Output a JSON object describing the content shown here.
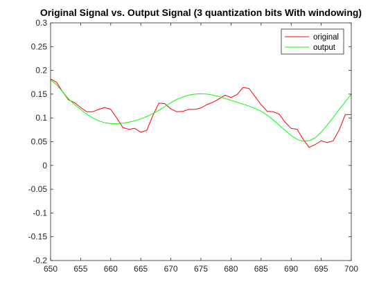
{
  "chart_data": {
    "type": "line",
    "title": "Original Signal vs. Output Signal (3 quantization bits With windowing)",
    "xlabel": "",
    "ylabel": "",
    "xlim": [
      650,
      700
    ],
    "ylim": [
      -0.2,
      0.3
    ],
    "xticks": [
      650,
      655,
      660,
      665,
      670,
      675,
      680,
      685,
      690,
      695,
      700
    ],
    "xtick_labels": [
      "650",
      "655",
      "660",
      "665",
      "670",
      "675",
      "680",
      "685",
      "690",
      "695",
      "700"
    ],
    "yticks": [
      -0.2,
      -0.15,
      -0.1,
      -0.05,
      0,
      0.05,
      0.1,
      0.15,
      0.2,
      0.25,
      0.3
    ],
    "ytick_labels": [
      "-0.2",
      "-0.15",
      "-0.1",
      "-0.05",
      "0",
      "0.05",
      "0.1",
      "0.15",
      "0.2",
      "0.25",
      "0.3"
    ],
    "grid": false,
    "legend_position": "top-right",
    "series": [
      {
        "name": "original",
        "color": "#ff0000",
        "x": [
          650,
          651,
          652,
          653,
          654,
          655,
          656,
          657,
          658,
          659,
          660,
          661,
          662,
          663,
          664,
          665,
          666,
          667,
          668,
          669,
          670,
          671,
          672,
          673,
          674,
          675,
          676,
          677,
          678,
          679,
          680,
          681,
          682,
          683,
          684,
          685,
          686,
          687,
          688,
          689,
          690,
          691,
          692,
          693,
          694,
          695,
          696,
          697,
          698,
          699,
          700
        ],
        "y": [
          0.182,
          0.175,
          0.155,
          0.138,
          0.132,
          0.122,
          0.113,
          0.113,
          0.118,
          0.122,
          0.118,
          0.1,
          0.08,
          0.076,
          0.078,
          0.07,
          0.074,
          0.105,
          0.131,
          0.13,
          0.119,
          0.113,
          0.114,
          0.118,
          0.118,
          0.121,
          0.128,
          0.133,
          0.14,
          0.148,
          0.143,
          0.149,
          0.164,
          0.162,
          0.145,
          0.128,
          0.114,
          0.113,
          0.108,
          0.091,
          0.078,
          0.076,
          0.055,
          0.038,
          0.044,
          0.052,
          0.048,
          0.052,
          0.075,
          0.107,
          0.107
        ]
      },
      {
        "name": "output",
        "color": "#00ff00",
        "x": [
          650,
          651,
          652,
          653,
          654,
          655,
          656,
          657,
          658,
          659,
          660,
          661,
          662,
          663,
          664,
          665,
          666,
          667,
          668,
          669,
          670,
          671,
          672,
          673,
          674,
          675,
          676,
          677,
          678,
          679,
          680,
          681,
          682,
          683,
          684,
          685,
          686,
          687,
          688,
          689,
          690,
          691,
          692,
          693,
          694,
          695,
          696,
          697,
          698,
          699,
          700
        ],
        "y": [
          0.18,
          0.17,
          0.155,
          0.14,
          0.128,
          0.118,
          0.108,
          0.1,
          0.094,
          0.09,
          0.088,
          0.088,
          0.089,
          0.091,
          0.094,
          0.098,
          0.103,
          0.109,
          0.116,
          0.124,
          0.132,
          0.139,
          0.144,
          0.148,
          0.15,
          0.151,
          0.15,
          0.148,
          0.145,
          0.141,
          0.137,
          0.133,
          0.129,
          0.125,
          0.12,
          0.114,
          0.106,
          0.096,
          0.085,
          0.074,
          0.063,
          0.055,
          0.051,
          0.052,
          0.058,
          0.07,
          0.085,
          0.101,
          0.118,
          0.134,
          0.15
        ]
      }
    ]
  }
}
